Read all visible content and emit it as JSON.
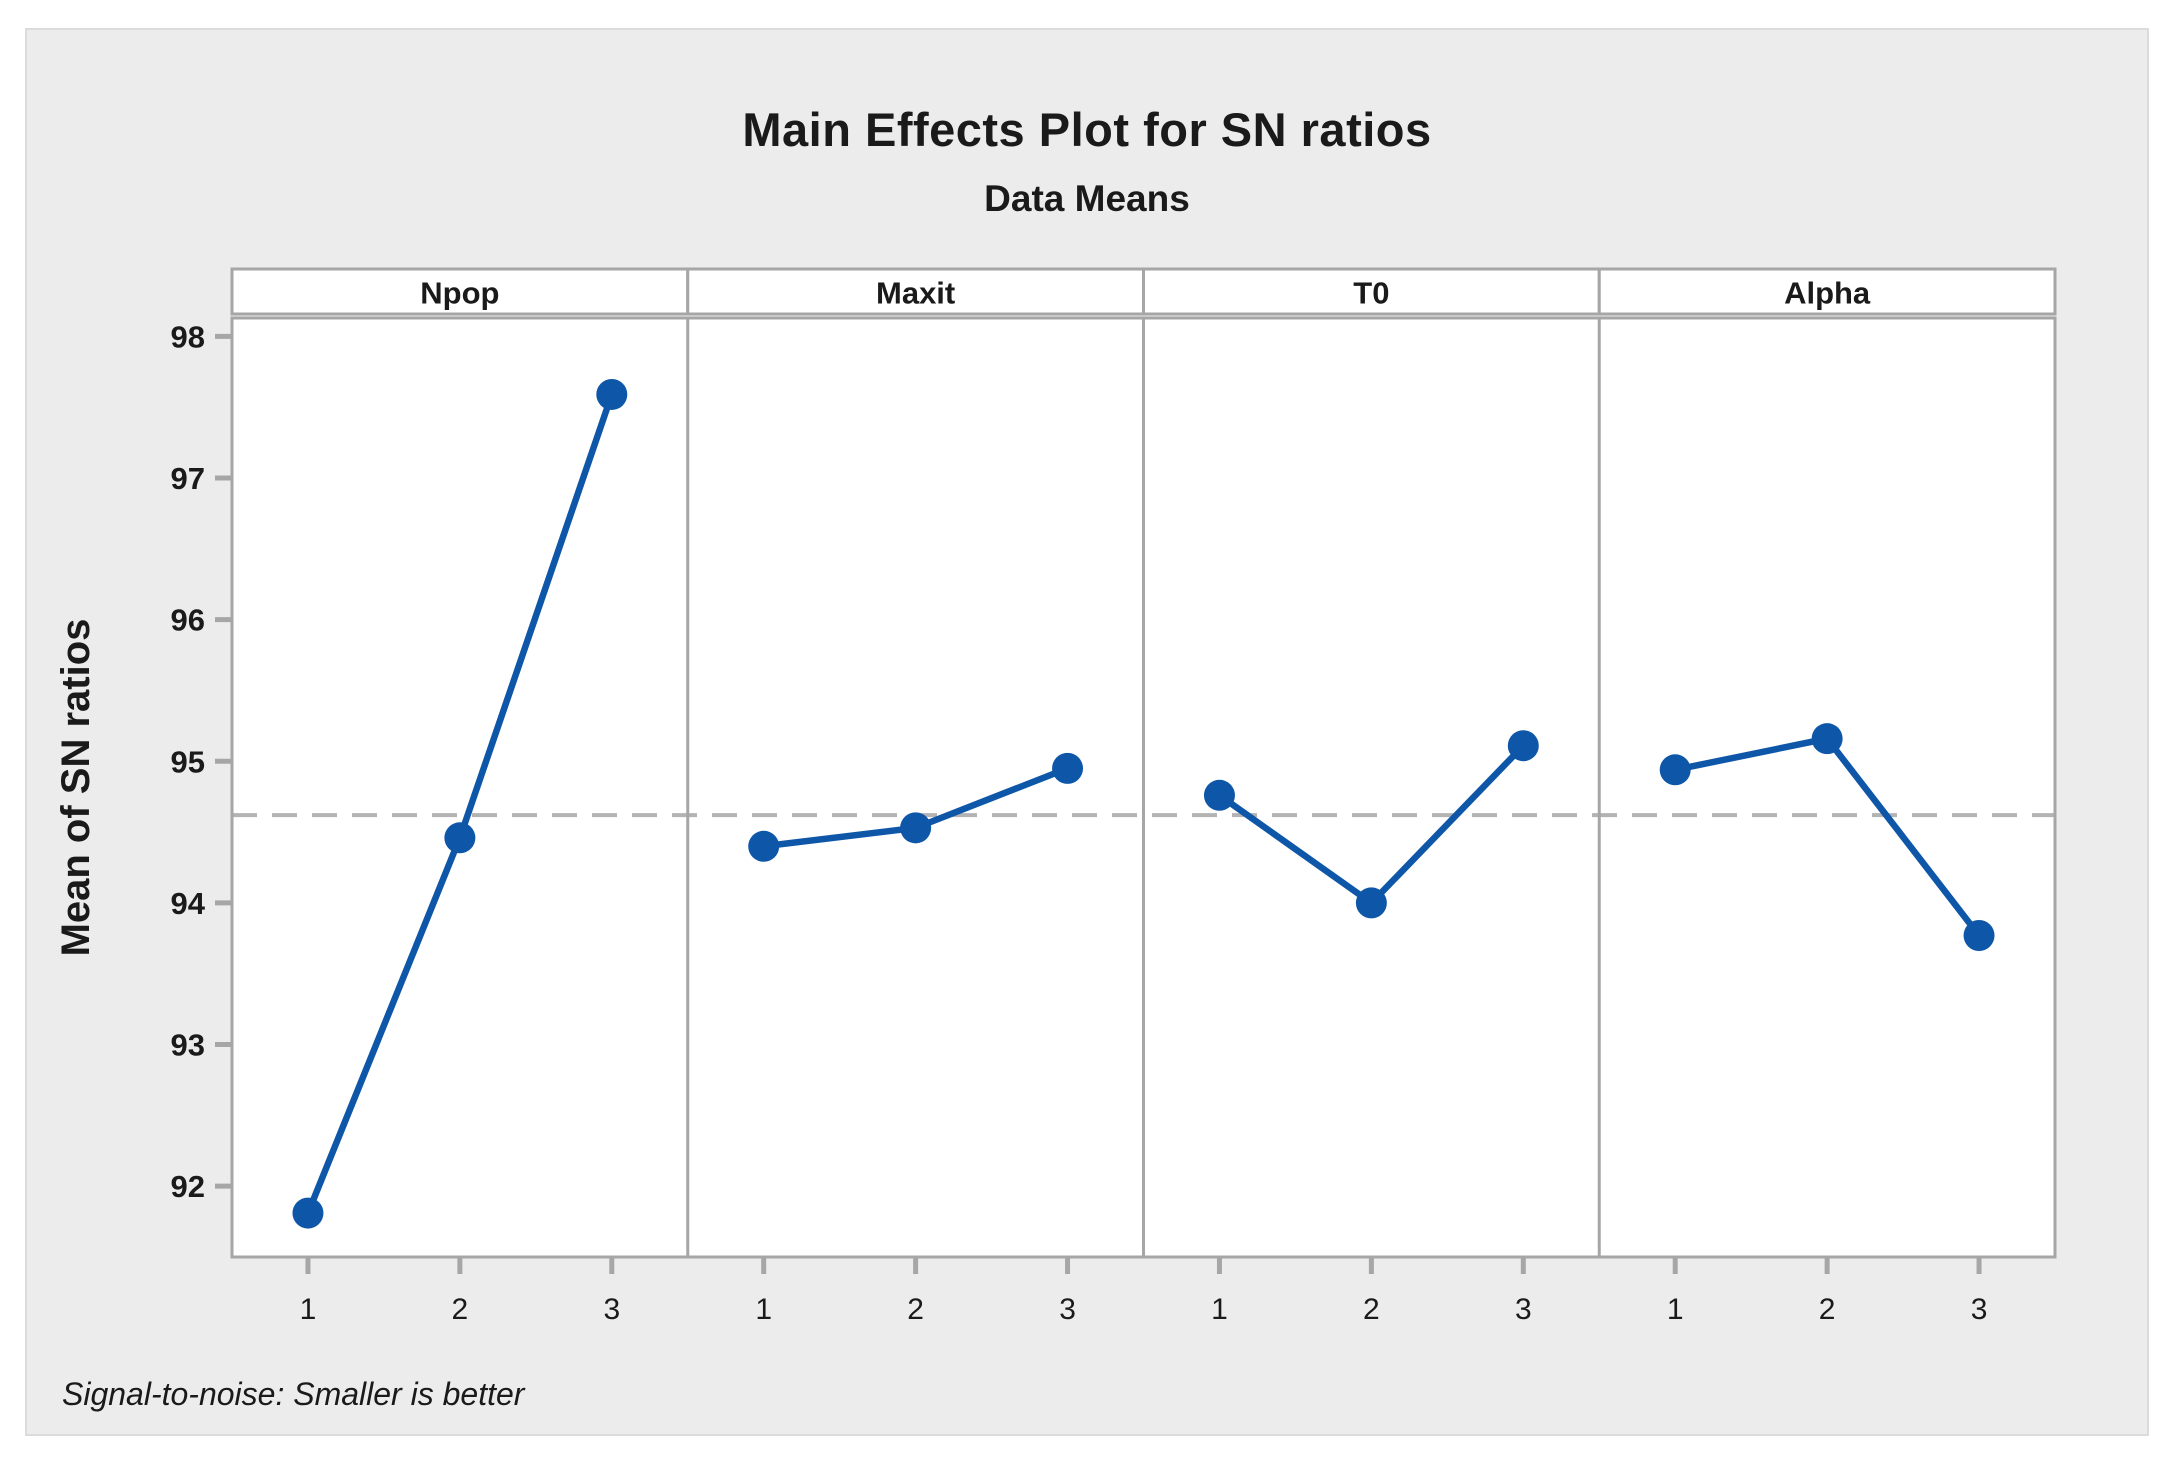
{
  "figure": {
    "title": "Main Effects Plot for SN ratios",
    "subtitle": "Data Means",
    "footnote": "Signal-to-noise: Smaller is better"
  },
  "chart_data": {
    "type": "line",
    "title": "Main Effects Plot for SN ratios",
    "subtitle": "Data Means",
    "xlabel": "",
    "ylabel": "Mean of SN ratios",
    "categories": [
      "1",
      "2",
      "3"
    ],
    "panels": [
      {
        "label": "Npop",
        "values": [
          91.81,
          94.46,
          97.59
        ]
      },
      {
        "label": "Maxit",
        "values": [
          94.4,
          94.53,
          94.95
        ]
      },
      {
        "label": "T0",
        "values": [
          94.76,
          94.0,
          95.11
        ]
      },
      {
        "label": "Alpha",
        "values": [
          94.94,
          95.16,
          93.77
        ]
      }
    ],
    "reference_line": 94.62,
    "yticks": [
      92,
      93,
      94,
      95,
      96,
      97,
      98
    ],
    "ylim": [
      91.5,
      98.13
    ],
    "grid": false,
    "legend": "none",
    "footnote": "Signal-to-noise: Smaller is better",
    "colors": {
      "series": "#0E57A8",
      "reference_line": "#B3B3B3",
      "panel_border": "#A6A6A6",
      "tick": "#A6A6A6",
      "figure_background": "#ECECEC",
      "plot_background": "#FFFFFF"
    }
  }
}
